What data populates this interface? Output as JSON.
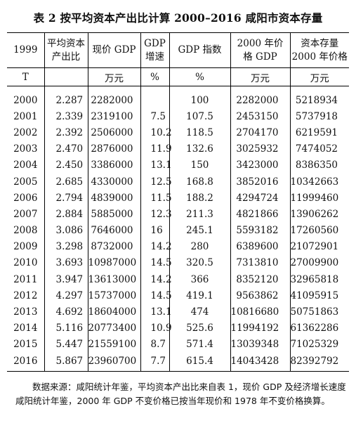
{
  "title": "表 2  按平均资本产出比计算 2000–2016 咸阳市资本存量",
  "headers": [
    "1999",
    "平均资本产出比",
    "现价 GDP",
    "GDP增速",
    "GDP 指数",
    "2000 年价格 GDP",
    "资本存量2000 年价格"
  ],
  "header_lines": [
    [
      "1999"
    ],
    [
      "平均资本",
      "产出比"
    ],
    [
      "现价 GDP"
    ],
    [
      "GDP",
      "增速"
    ],
    [
      "GDP 指数"
    ],
    [
      "2000 年价",
      "格 GDP"
    ],
    [
      "资本存量",
      "2000 年价格"
    ]
  ],
  "units": [
    "T",
    "",
    "万元",
    "%",
    "%",
    "万元",
    "万元"
  ],
  "rows": [
    [
      "2000",
      "2.287",
      "2282000",
      "",
      "100",
      "2282000",
      "5218934"
    ],
    [
      "2001",
      "2.339",
      "2319100",
      "7.5",
      "107.5",
      "2453150",
      "5737918"
    ],
    [
      "2002",
      "2.392",
      "2506000",
      "10.2",
      "118.5",
      "2704170",
      "6219591"
    ],
    [
      "2003",
      "2.470",
      "2876000",
      "11.9",
      "132.6",
      "3025932",
      "7474052"
    ],
    [
      "2004",
      "2.450",
      "3386000",
      "13.1",
      "150",
      "3423000",
      "8386350"
    ],
    [
      "2005",
      "2.685",
      "4330000",
      "12.5",
      "168.8",
      "3852016",
      "10342663"
    ],
    [
      "2006",
      "2.794",
      "4839000",
      "11.5",
      "188.2",
      "4294724",
      "11999460"
    ],
    [
      "2007",
      "2.884",
      "5885000",
      "12.3",
      "211.3",
      "4821866",
      "13906262"
    ],
    [
      "2008",
      "3.086",
      "7646000",
      "16",
      "245.1",
      "5593182",
      "17260560"
    ],
    [
      "2009",
      "3.298",
      "8732000",
      "14.2",
      "280",
      "6389600",
      "21072901"
    ],
    [
      "2010",
      "3.693",
      "10987000",
      "14.5",
      "320.5",
      "7313810",
      "27009900"
    ],
    [
      "2011",
      "3.947",
      "13613000",
      "14.2",
      "366",
      "8352120",
      "32965818"
    ],
    [
      "2012",
      "4.297",
      "15737000",
      "14.5",
      "419.1",
      "9563862",
      "41095915"
    ],
    [
      "2013",
      "4.692",
      "18604000",
      "13.1",
      "474",
      "10816680",
      "50751863"
    ],
    [
      "2014",
      "5.116",
      "20773400",
      "10.9",
      "525.6",
      "11994192",
      "61362286"
    ],
    [
      "2015",
      "5.447",
      "21559100",
      "8.7",
      "571.4",
      "13039348",
      "71025329"
    ],
    [
      "2016",
      "5.867",
      "23960700",
      "7.7",
      "615.4",
      "14043428",
      "82392792"
    ]
  ],
  "note": "数据来源：咸阳统计年鉴，平均资本产出比来自表 1，现价 GDP 及经济增长速度咸阳统计年鉴，2000 年 GDP 不变价格已按当年现价和 1978 年不变价格换算。"
}
